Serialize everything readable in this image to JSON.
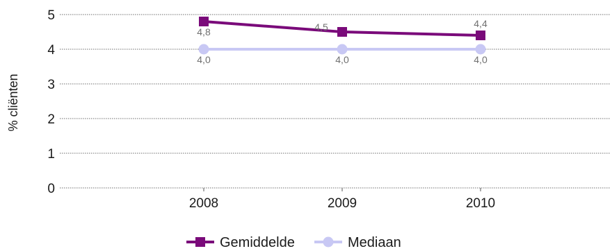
{
  "chart_data": {
    "type": "line",
    "ylabel": "% cliënten",
    "ylim": [
      0,
      5
    ],
    "yticks": [
      "0",
      "1",
      "2",
      "3",
      "4",
      "5"
    ],
    "categories": [
      "2008",
      "2009",
      "2010"
    ],
    "grid": true,
    "legend_position": "bottom",
    "series": [
      {
        "name": "Gemiddelde",
        "values": [
          4.8,
          4.5,
          4.4
        ],
        "labels": [
          "4,8",
          "4,5",
          "4,4"
        ],
        "color": "#7a0a7a",
        "marker": "square"
      },
      {
        "name": "Mediaan",
        "values": [
          4.0,
          4.0,
          4.0
        ],
        "labels": [
          "4,0",
          "4,0",
          "4,0"
        ],
        "color": "#c8c8f4",
        "marker": "circle"
      }
    ]
  }
}
